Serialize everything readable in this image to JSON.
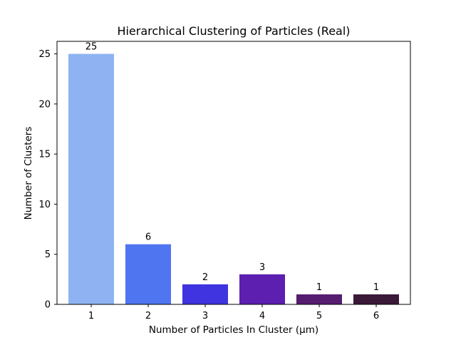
{
  "chart_data": {
    "type": "bar",
    "title": "Hierarchical Clustering of Particles (Real)",
    "xlabel": "Number of Particles In Cluster (μm)",
    "ylabel": "Number of Clusters",
    "categories": [
      "1",
      "2",
      "3",
      "4",
      "5",
      "6"
    ],
    "values": [
      25,
      6,
      2,
      3,
      1,
      1
    ],
    "data_labels": [
      "25",
      "6",
      "2",
      "3",
      "1",
      "1"
    ],
    "colors": [
      "#8fb3f2",
      "#4f76f0",
      "#3f34e0",
      "#5c1fb0",
      "#561c70",
      "#3a1838"
    ],
    "ylim": [
      0,
      26.25
    ],
    "yticks": [
      0,
      5,
      10,
      15,
      20,
      25
    ],
    "grid": false,
    "legend": "none"
  }
}
